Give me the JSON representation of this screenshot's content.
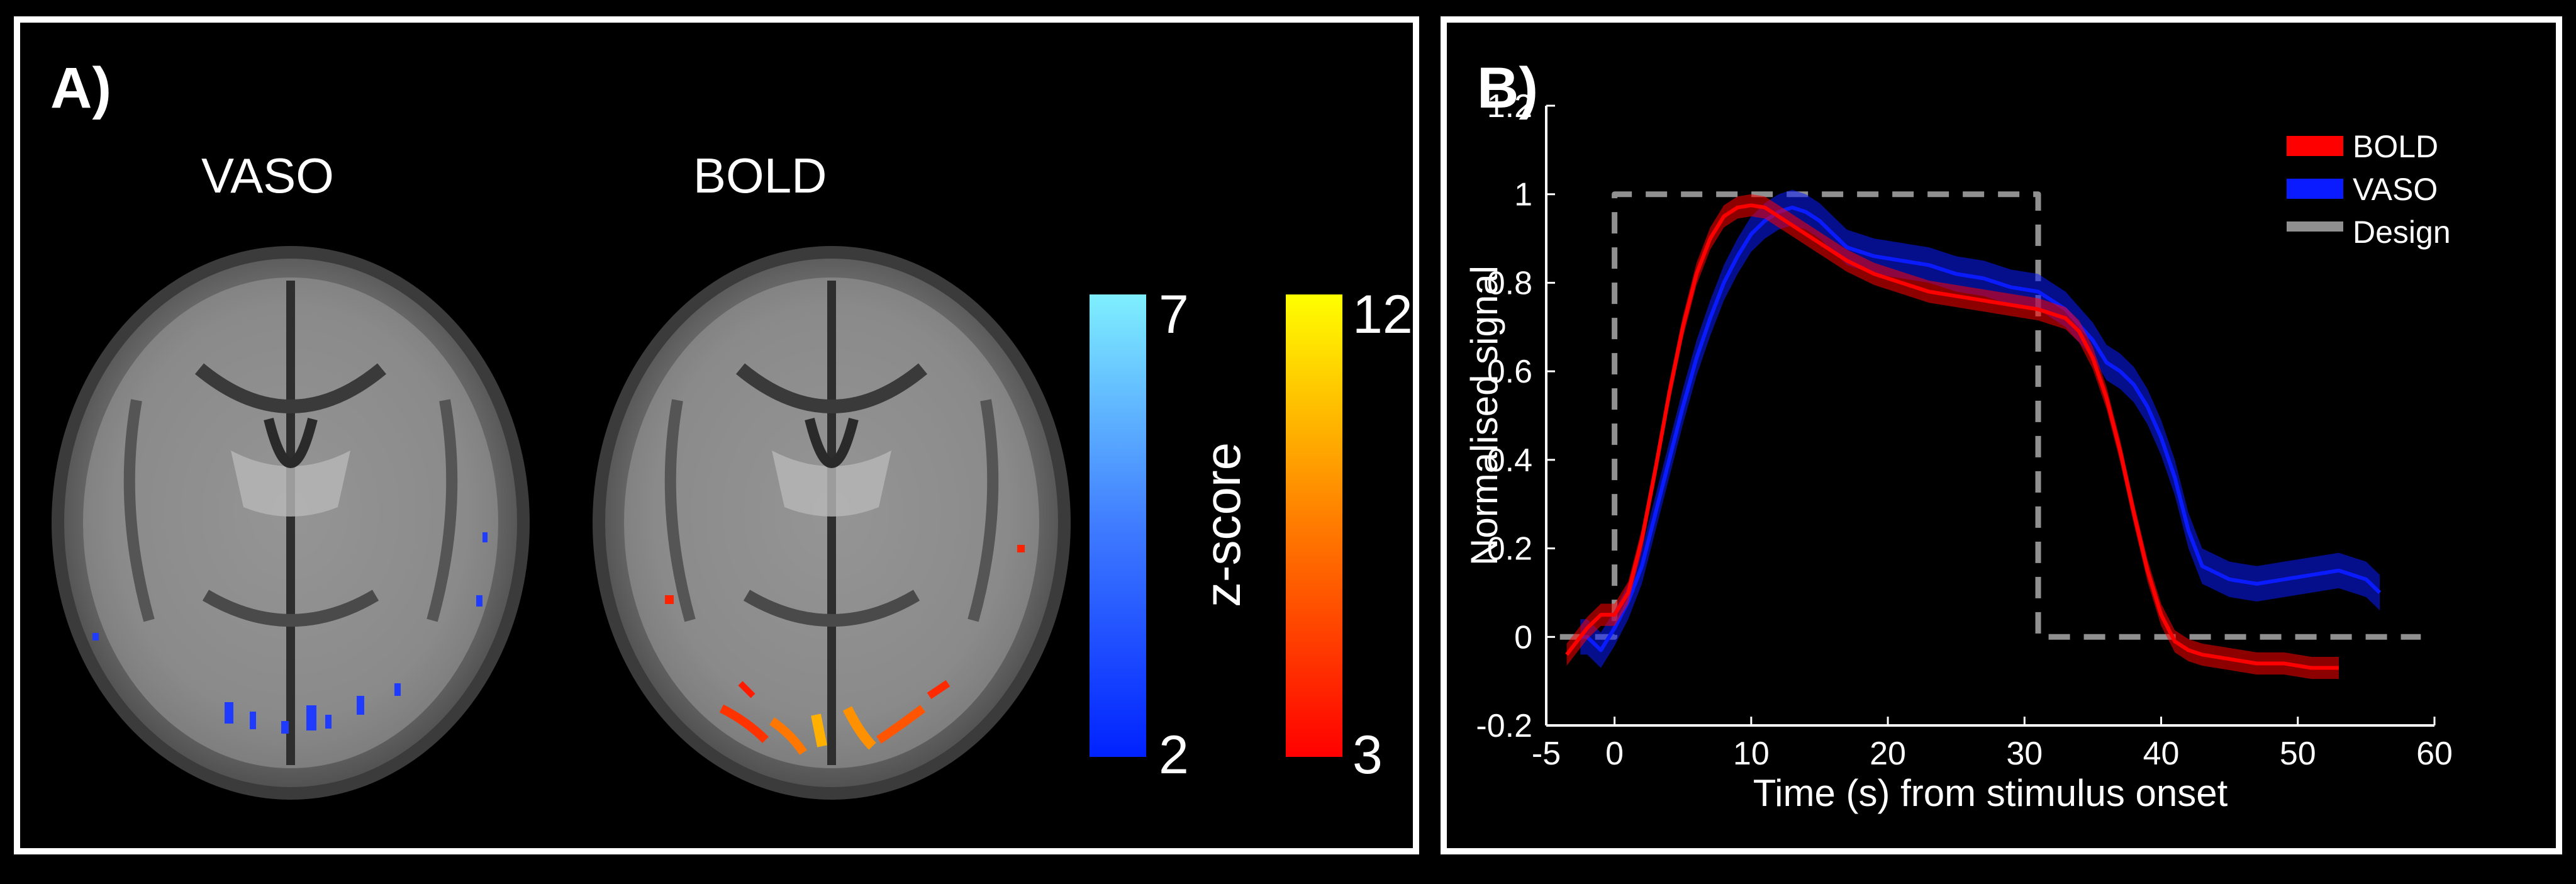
{
  "panel_a": {
    "letter": "A)",
    "titles": [
      "VASO",
      "BOLD"
    ],
    "vaso_scale": {
      "max": "7",
      "min": "2",
      "colors": [
        "#0022ff",
        "#3f7cff",
        "#7fefff"
      ]
    },
    "bold_scale": {
      "max": "12",
      "min": "3",
      "colors": [
        "#ff0000",
        "#ff7b00",
        "#ffff00"
      ]
    },
    "scale_label": "z-score"
  },
  "panel_b": {
    "letter": "B)"
  },
  "chart_data": {
    "type": "line",
    "xlabel": "Time (s) from stimulus onset",
    "ylabel": "Normalised signal",
    "xlim": [
      -5,
      60
    ],
    "ylim": [
      -0.2,
      1.2
    ],
    "xticks": [
      -5,
      0,
      10,
      20,
      30,
      40,
      50,
      60
    ],
    "yticks": [
      -0.2,
      0,
      0.2,
      0.4,
      0.6,
      0.8,
      1,
      1.2
    ],
    "xtick_labels": [
      "-5",
      "0",
      "10",
      "20",
      "30",
      "40",
      "50",
      "60"
    ],
    "ytick_labels": [
      "-0.2",
      "0",
      "0.2",
      "0.4",
      "0.6",
      "0.8",
      "1",
      "1.2"
    ],
    "legend_position": "top-right",
    "series": [
      {
        "name": "BOLD",
        "color": "#ff0000",
        "band": 0.025,
        "x": [
          -3.5,
          -2,
          -1,
          0,
          1,
          2,
          3,
          4,
          5,
          6,
          7,
          8,
          9,
          10,
          11,
          12,
          13,
          14,
          15,
          17,
          19,
          21,
          23,
          25,
          27,
          29,
          31,
          33,
          34,
          35,
          36,
          37,
          38,
          39,
          40,
          41,
          42,
          43,
          45,
          47,
          49,
          51,
          53
        ],
        "y": [
          -0.04,
          0.02,
          0.05,
          0.05,
          0.1,
          0.22,
          0.38,
          0.55,
          0.7,
          0.82,
          0.9,
          0.95,
          0.97,
          0.975,
          0.97,
          0.95,
          0.93,
          0.91,
          0.89,
          0.85,
          0.82,
          0.8,
          0.78,
          0.77,
          0.76,
          0.75,
          0.74,
          0.72,
          0.69,
          0.63,
          0.54,
          0.42,
          0.28,
          0.15,
          0.05,
          -0.01,
          -0.03,
          -0.04,
          -0.05,
          -0.06,
          -0.06,
          -0.07,
          -0.07
        ]
      },
      {
        "name": "VASO",
        "color": "#0a1cff",
        "band": 0.04,
        "x": [
          -2.5,
          -2,
          -1,
          0,
          1,
          2,
          3,
          4,
          5,
          6,
          7,
          8,
          9,
          10,
          11,
          12,
          13,
          14,
          15,
          17,
          19,
          21,
          23,
          25,
          27,
          29,
          31,
          33,
          35,
          36,
          37,
          38,
          39,
          40,
          41,
          42,
          43,
          45,
          47,
          49,
          51,
          53,
          55,
          56
        ],
        "y": [
          0.0,
          0.0,
          -0.03,
          0.02,
          0.08,
          0.16,
          0.28,
          0.4,
          0.52,
          0.63,
          0.72,
          0.8,
          0.86,
          0.91,
          0.94,
          0.96,
          0.97,
          0.96,
          0.94,
          0.88,
          0.86,
          0.85,
          0.84,
          0.82,
          0.81,
          0.79,
          0.78,
          0.74,
          0.67,
          0.62,
          0.6,
          0.57,
          0.52,
          0.45,
          0.36,
          0.24,
          0.16,
          0.13,
          0.12,
          0.13,
          0.14,
          0.15,
          0.13,
          0.1
        ]
      },
      {
        "name": "Design",
        "color": "#909090",
        "dashed": true,
        "x": [
          -4,
          0,
          0,
          31,
          31,
          59
        ],
        "y": [
          0,
          0,
          1,
          1,
          0,
          0
        ]
      }
    ]
  }
}
